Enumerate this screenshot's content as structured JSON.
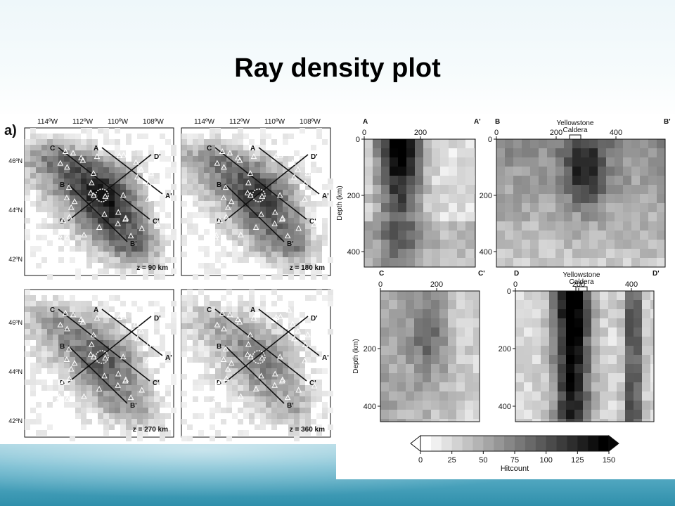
{
  "slide": {
    "title": "Ray density plot"
  },
  "colors": {
    "background": "#ffffff",
    "bottom_band": "#5fb1c9",
    "scale_low": "#ffffff",
    "scale_high": "#050505"
  },
  "map_panels": {
    "figure_label": "a)",
    "lon_labels": [
      "114ºW",
      "112ºW",
      "110ºW",
      "108ºW"
    ],
    "lat_labels": [
      "46ºN",
      "44ºN",
      "42ºN"
    ],
    "line_labels": [
      "A",
      "A'",
      "B",
      "B'",
      "C",
      "C'",
      "D",
      "D'"
    ],
    "depths": [
      "z = 90 km",
      "z = 180 km",
      "z = 270 km",
      "z = 360 km"
    ]
  },
  "sections": [
    {
      "start": "A",
      "end": "A'",
      "x_ticks": [
        "0",
        "200"
      ],
      "y_ticks": [
        "0",
        "200",
        "400"
      ],
      "ylabel": "Depth (km)",
      "caldera": ""
    },
    {
      "start": "B",
      "end": "B'",
      "x_ticks": [
        "0",
        "200",
        "400"
      ],
      "y_ticks": [
        "0",
        "200",
        "400"
      ],
      "ylabel": "",
      "caldera": "Yellowstone\nCaldera"
    },
    {
      "start": "C",
      "end": "C'",
      "x_ticks": [
        "0",
        "200"
      ],
      "y_ticks": [
        "200",
        "400"
      ],
      "ylabel": "Depth (km)",
      "caldera": ""
    },
    {
      "start": "D",
      "end": "D'",
      "x_ticks": [
        "0",
        "200",
        "400"
      ],
      "y_ticks": [
        "0",
        "200",
        "400"
      ],
      "ylabel": "",
      "caldera": "Yellowstone\nCaldera"
    }
  ],
  "colorbar": {
    "ticks": [
      "0",
      "25",
      "50",
      "75",
      "100",
      "125",
      "150"
    ],
    "label": "Hitcount",
    "min": 0,
    "max": 150
  }
}
